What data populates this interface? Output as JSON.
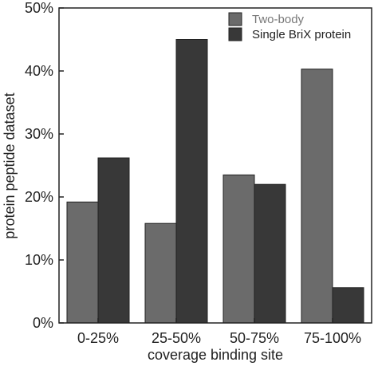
{
  "chart_data": {
    "type": "bar",
    "categories": [
      "0-25%",
      "25-50%",
      "50-75%",
      "75-100%"
    ],
    "series": [
      {
        "name": "Two-body",
        "color": "#6b6b6b",
        "values": [
          19.2,
          15.8,
          23.5,
          40.3
        ]
      },
      {
        "name": "Single BriX protein",
        "color": "#383838",
        "values": [
          26.2,
          45.0,
          22.0,
          5.6
        ]
      }
    ],
    "xlabel": "coverage binding site",
    "ylabel": "protein peptide dataset",
    "ylim": [
      0,
      50
    ],
    "yticks": [
      "0%",
      "10%",
      "20%",
      "30%",
      "40%",
      "50%"
    ],
    "grid": false,
    "legend_position": "top-right"
  }
}
